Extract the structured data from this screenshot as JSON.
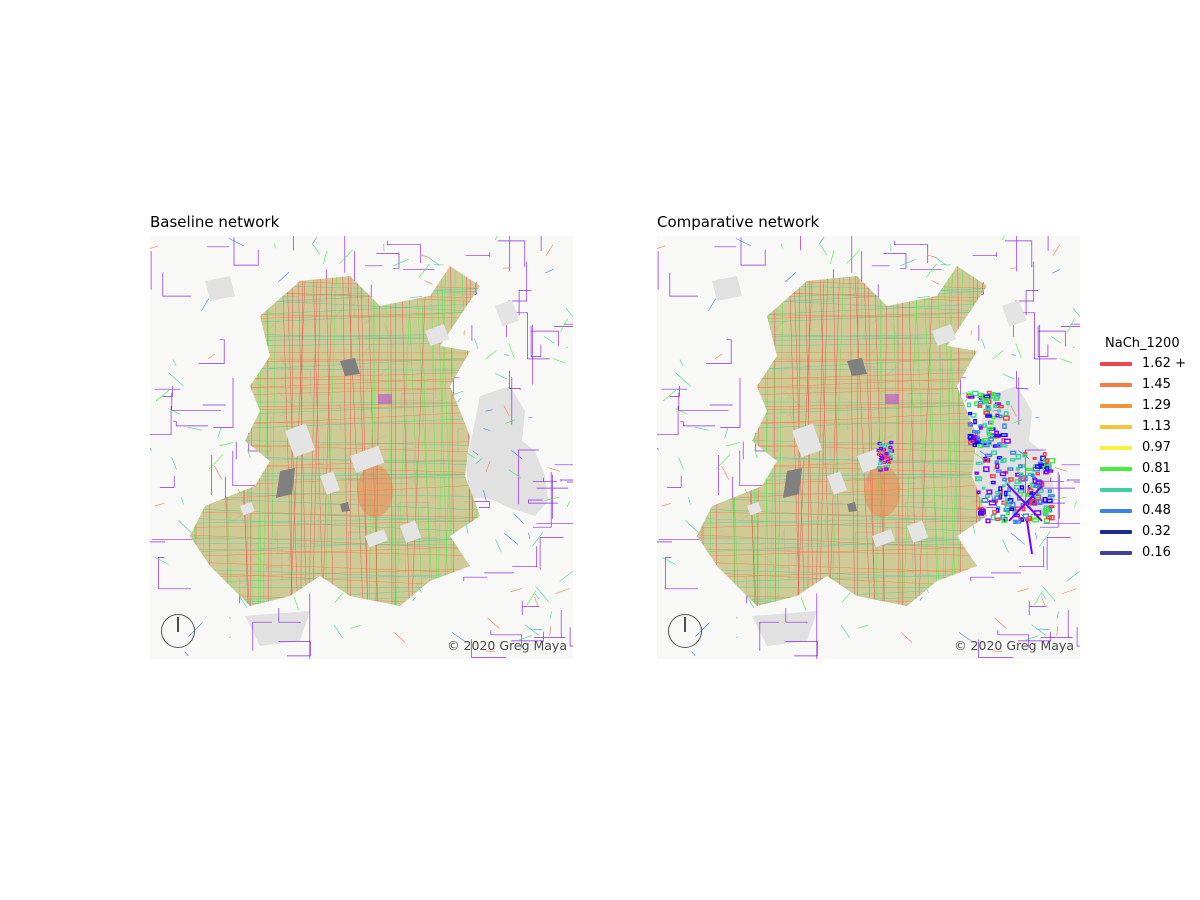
{
  "panels": [
    {
      "title": "Baseline network",
      "credit": "© 2020 Greg Maya",
      "intervention": false
    },
    {
      "title": "Comparative network",
      "credit": "© 2020 Greg Maya",
      "intervention": true
    }
  ],
  "legend": {
    "title": "NaCh_1200",
    "items": [
      {
        "label": "1.62 +",
        "color": "#f0424a"
      },
      {
        "label": "1.45",
        "color": "#f47a45"
      },
      {
        "label": "1.29",
        "color": "#f69237"
      },
      {
        "label": "1.13",
        "color": "#f8c336"
      },
      {
        "label": "0.97",
        "color": "#f9f03e"
      },
      {
        "label": "0.81",
        "color": "#45ee3d"
      },
      {
        "label": "0.65",
        "color": "#3ecfa2"
      },
      {
        "label": "0.48",
        "color": "#3d84e6"
      },
      {
        "label": "0.32",
        "color": "#1b2a8c"
      },
      {
        "label": "0.16",
        "color": "#414496"
      }
    ]
  },
  "colors": {
    "background": "#f8f8f7",
    "water": "#e1e1e1",
    "buildings": "#808080",
    "peripheral_roads": "#8a2be2"
  }
}
